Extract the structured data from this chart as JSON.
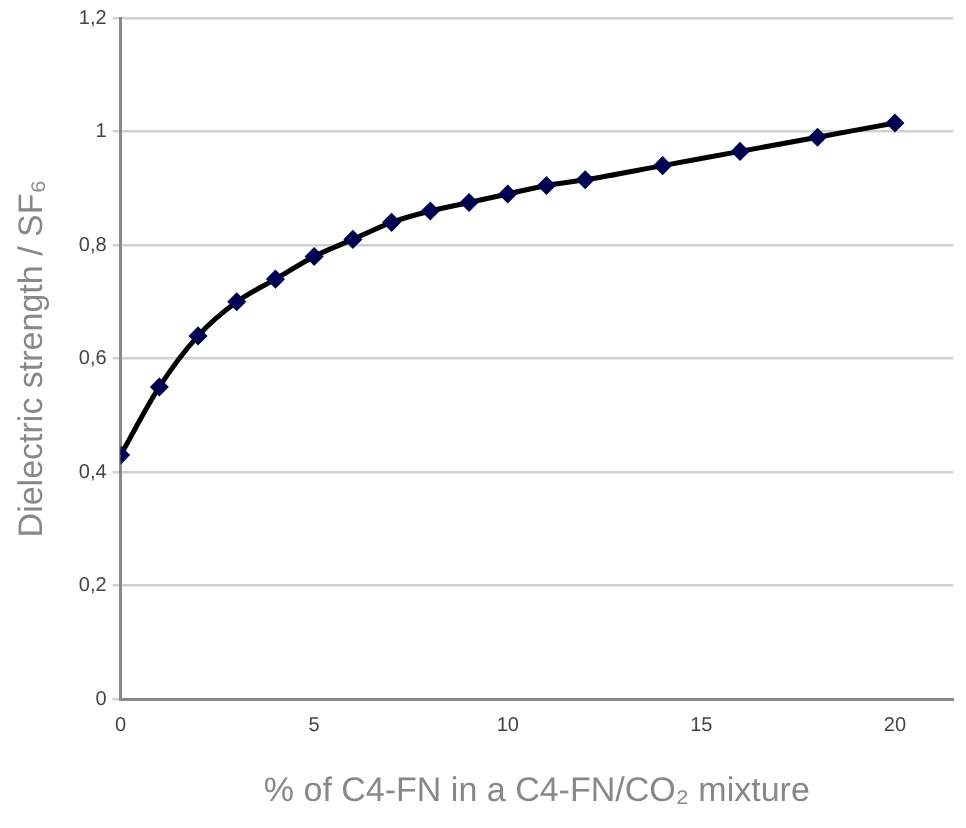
{
  "chart_data": {
    "type": "line",
    "xlabel": "% of C4-FN in a C4-FN/CO₂ mixture",
    "ylabel": "Dielectric strength / SF₆",
    "x": [
      0,
      1,
      2,
      3,
      4,
      5,
      6,
      7,
      8,
      9,
      10,
      11,
      12,
      14,
      16,
      18,
      20
    ],
    "series": [
      {
        "color": "#000050",
        "values": [
          0.43,
          0.55,
          0.64,
          0.7,
          0.74,
          0.78,
          0.81,
          0.84,
          0.86,
          0.875,
          0.89,
          0.905,
          0.915,
          0.94,
          0.965,
          0.99,
          1.015
        ]
      }
    ],
    "xlim": [
      0,
      21.5
    ],
    "xticks": [
      0,
      5,
      10,
      15,
      20
    ],
    "ylim": [
      0,
      1.2
    ],
    "yticks": [
      0,
      {
        "value": 0.2,
        "label": "0,2"
      },
      {
        "value": 0.4,
        "label": "0,4"
      },
      {
        "value": 0.6,
        "label": "0,6"
      },
      {
        "value": 0.8,
        "label": "0,8"
      },
      1,
      {
        "value": 1.2,
        "label": "1,2"
      }
    ],
    "grid": "y",
    "legend": false,
    "marker": "diamond",
    "line_style": "solid"
  }
}
